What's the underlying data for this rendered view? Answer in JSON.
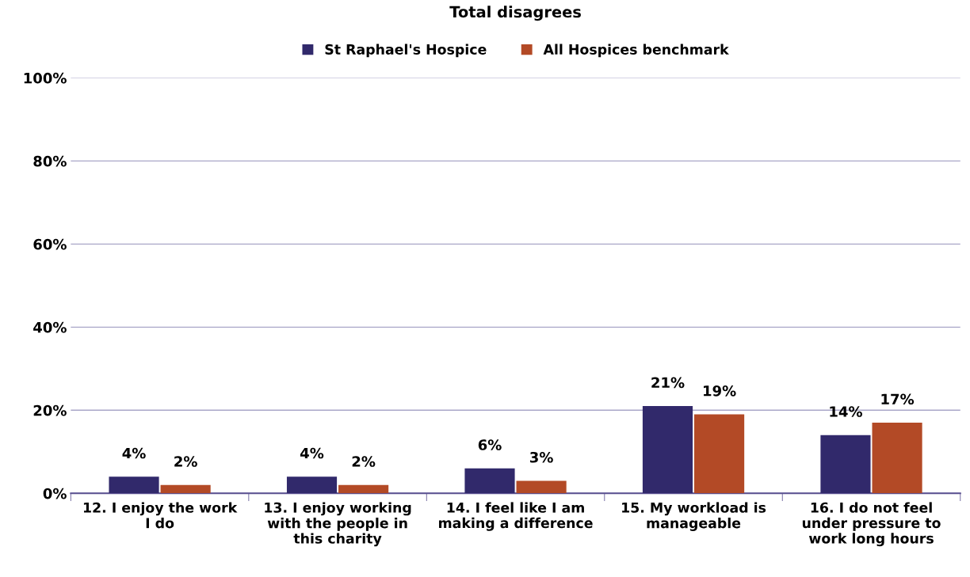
{
  "chart_data": {
    "type": "bar",
    "title": "Total disagrees",
    "categories": [
      "12. I enjoy the work I do",
      "13. I enjoy working with the people in this charity",
      "14. I feel like I am making a difference",
      "15. My workload is manageable",
      "16. I do not feel under pressure to work long hours"
    ],
    "series": [
      {
        "name": "St Raphael's Hospice",
        "color": "#31296b",
        "values": [
          4,
          4,
          6,
          21,
          14
        ],
        "value_labels": [
          "4%",
          "4%",
          "6%",
          "21%",
          "14%"
        ]
      },
      {
        "name": "All Hospices benchmark",
        "color": "#b34a26",
        "values": [
          2,
          2,
          3,
          19,
          17
        ],
        "value_labels": [
          "2%",
          "2%",
          "3%",
          "19%",
          "17%"
        ]
      }
    ],
    "ylim": [
      0,
      100
    ],
    "yticks": [
      {
        "value": 0,
        "label": "0%"
      },
      {
        "value": 20,
        "label": "20%"
      },
      {
        "value": 40,
        "label": "40%"
      },
      {
        "value": 60,
        "label": "60%"
      },
      {
        "value": 80,
        "label": "80%"
      },
      {
        "value": 100,
        "label": "100%"
      }
    ],
    "grid": "y",
    "legend": "top"
  }
}
